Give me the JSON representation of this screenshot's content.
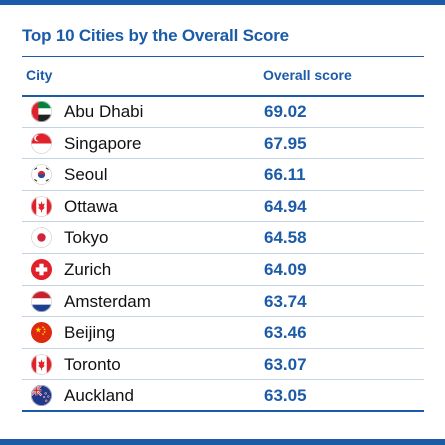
{
  "title": "Top 10 Cities by the Overall Score",
  "columns": {
    "city": "City",
    "score": "Overall score"
  },
  "rows": [
    {
      "city": "Abu Dhabi",
      "score": "69.02",
      "flag": "uae-flag-icon"
    },
    {
      "city": "Singapore",
      "score": "67.95",
      "flag": "singapore-flag-icon"
    },
    {
      "city": "Seoul",
      "score": "66.11",
      "flag": "south-korea-flag-icon"
    },
    {
      "city": "Ottawa",
      "score": "64.94",
      "flag": "canada-flag-icon"
    },
    {
      "city": "Tokyo",
      "score": "64.58",
      "flag": "japan-flag-icon"
    },
    {
      "city": "Zurich",
      "score": "64.09",
      "flag": "switzerland-flag-icon"
    },
    {
      "city": "Amsterdam",
      "score": "63.74",
      "flag": "netherlands-flag-icon"
    },
    {
      "city": "Beijing",
      "score": "63.46",
      "flag": "china-flag-icon"
    },
    {
      "city": "Toronto",
      "score": "63.07",
      "flag": "canada-flag-icon"
    },
    {
      "city": "Auckland",
      "score": "63.05",
      "flag": "new-zealand-flag-icon"
    }
  ],
  "colors": {
    "accent": "#1c5ba8",
    "text": "#111111",
    "divider": "#c5d3e6"
  }
}
